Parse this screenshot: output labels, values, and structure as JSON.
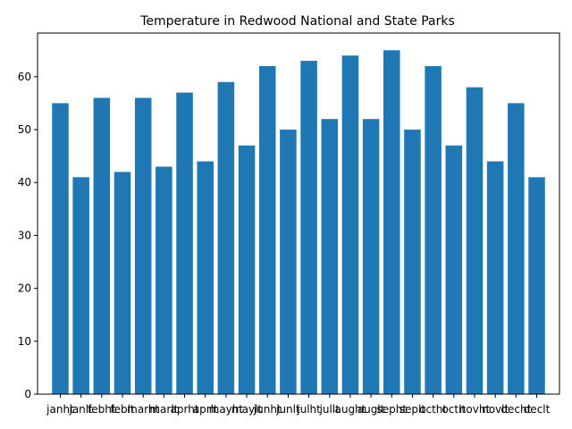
{
  "chart_data": {
    "type": "bar",
    "title": "Temperature in Redwood National and State Parks",
    "xlabel": "",
    "ylabel": "",
    "categories": [
      "janht",
      "janlt",
      "febht",
      "feblt",
      "marht",
      "marlt",
      "aprht",
      "aprlt",
      "mayht",
      "maylt",
      "junht",
      "junlt",
      "julht",
      "jullt",
      "aught",
      "auglt",
      "sepht",
      "seplt",
      "octht",
      "octlt",
      "novht",
      "novlt",
      "decht",
      "declt"
    ],
    "values": [
      55,
      41,
      56,
      42,
      56,
      43,
      57,
      44,
      59,
      47,
      62,
      50,
      63,
      52,
      64,
      52,
      65,
      50,
      62,
      47,
      58,
      44,
      55,
      41
    ],
    "ylim": [
      0,
      68.25
    ],
    "yticks": [
      0,
      10,
      20,
      30,
      40,
      50,
      60
    ],
    "bar_color": "#1f77b4",
    "grid": false,
    "legend": "none"
  }
}
